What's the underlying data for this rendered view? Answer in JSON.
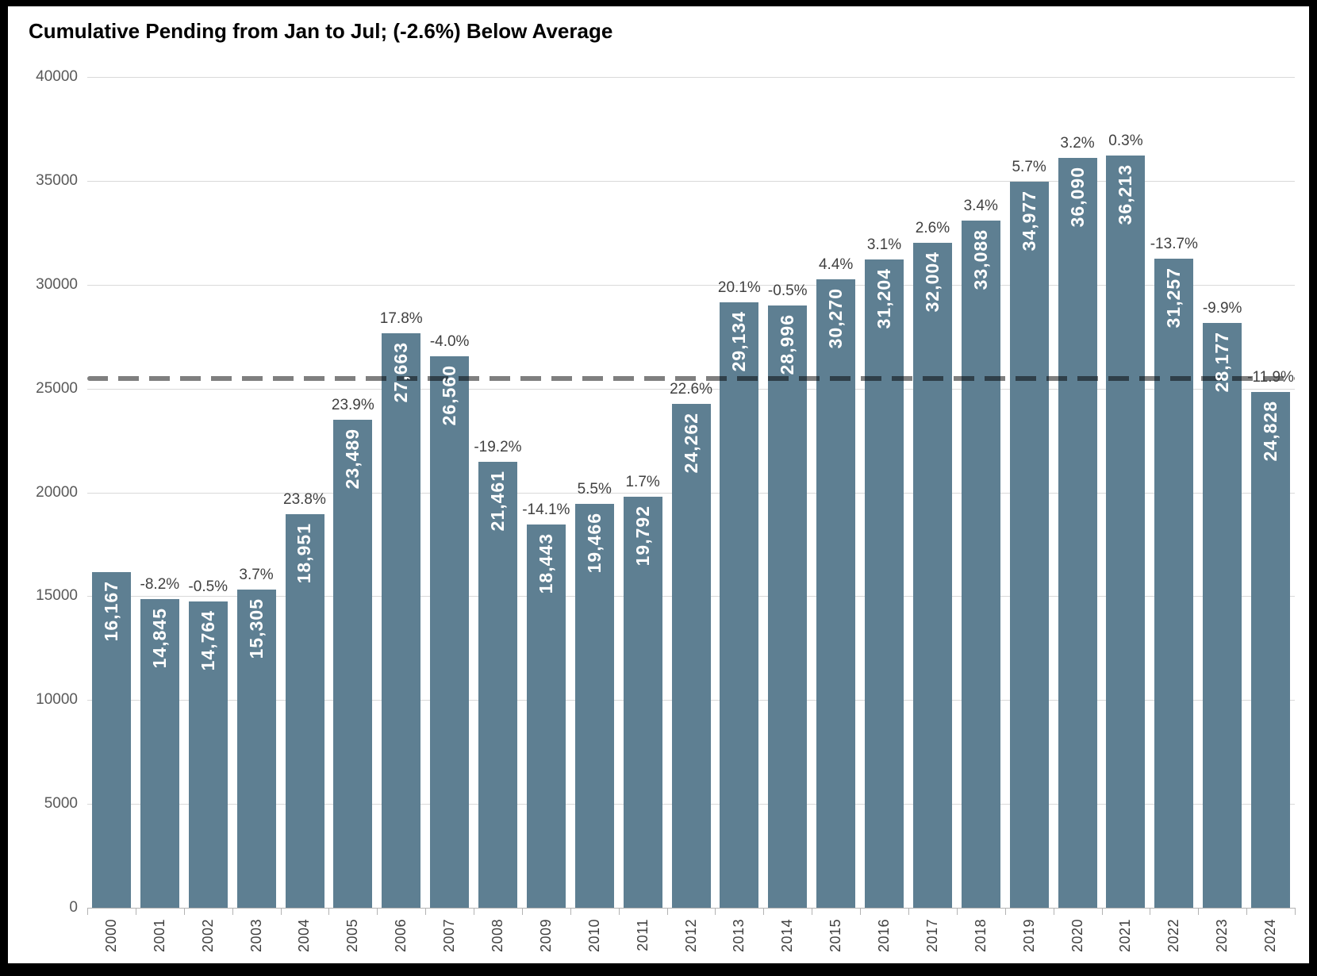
{
  "title": "Cumulative Pending from Jan to Jul; (-2.6%) Below Average",
  "colors": {
    "bar": "#5e7f92",
    "bar_value_text": "#ffffff",
    "pct_text": "#404040",
    "axis_tick_text": "#595959",
    "xlabel_text": "#404040",
    "gridline": "#d9d9d9",
    "axis_line": "#b3b3b3",
    "average_line": "rgba(0,0,0,0.5)",
    "background": "#ffffff",
    "frame": "#000000",
    "title_text": "#000000"
  },
  "chart_data": {
    "type": "bar",
    "title": "Cumulative Pending from Jan to Jul; (-2.6%) Below Average",
    "categories": [
      "2000",
      "2001",
      "2002",
      "2003",
      "2004",
      "2005",
      "2006",
      "2007",
      "2008",
      "2009",
      "2010",
      "2011",
      "2012",
      "2013",
      "2014",
      "2015",
      "2016",
      "2017",
      "2018",
      "2019",
      "2020",
      "2021",
      "2022",
      "2023",
      "2024"
    ],
    "values": [
      16167,
      14845,
      14764,
      15305,
      18951,
      23489,
      27663,
      26560,
      21461,
      18443,
      19466,
      19792,
      24262,
      29134,
      28996,
      30270,
      31204,
      32004,
      33088,
      34977,
      36090,
      36213,
      31257,
      28177,
      24828
    ],
    "value_labels": [
      "16,167",
      "14,845",
      "14,764",
      "15,305",
      "18,951",
      "23,489",
      "27,663",
      "26,560",
      "21,461",
      "18,443",
      "19,466",
      "19,792",
      "24,262",
      "29,134",
      "28,996",
      "30,270",
      "31,204",
      "32,004",
      "33,088",
      "34,977",
      "36,090",
      "36,213",
      "31,257",
      "28,177",
      "24,828"
    ],
    "pct_change_labels": [
      "",
      "-8.2%",
      "-0.5%",
      "3.7%",
      "23.8%",
      "23.9%",
      "17.8%",
      "-4.0%",
      "-19.2%",
      "-14.1%",
      "5.5%",
      "1.7%",
      "22.6%",
      "20.1%",
      "-0.5%",
      "4.4%",
      "3.1%",
      "2.6%",
      "3.4%",
      "5.7%",
      "3.2%",
      "0.3%",
      "-13.7%",
      "-9.9%",
      "-11.9%"
    ],
    "xlabel": "",
    "ylabel": "",
    "ylim": [
      0,
      40000
    ],
    "yticks": [
      0,
      5000,
      10000,
      15000,
      20000,
      25000,
      30000,
      35000,
      40000
    ],
    "average_line_value": 25496,
    "grid": true,
    "legend": null
  }
}
